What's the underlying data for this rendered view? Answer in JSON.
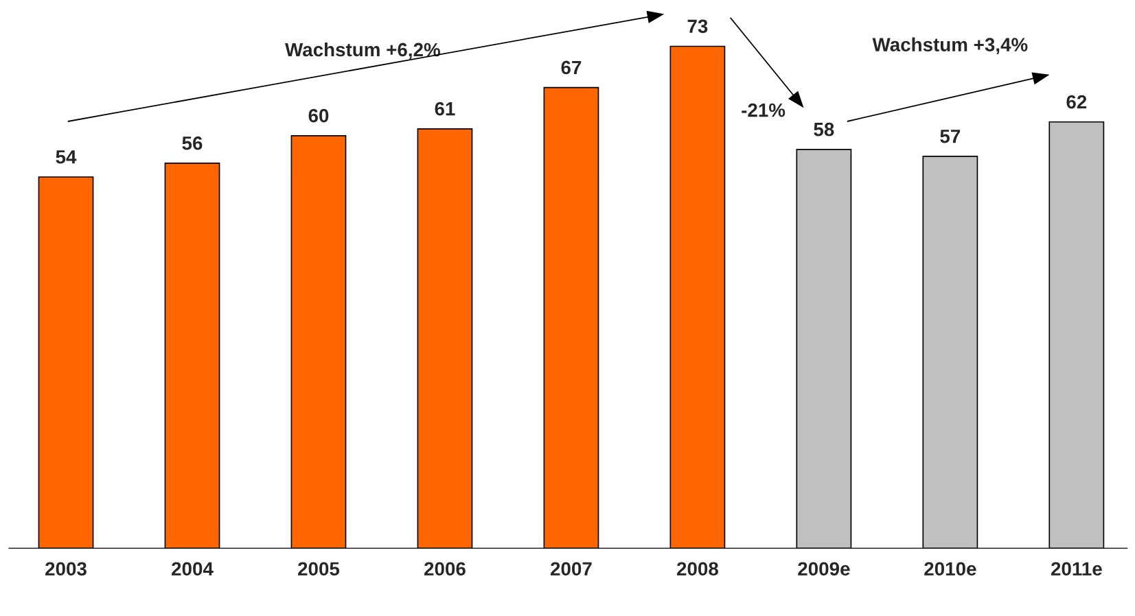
{
  "chart_data": {
    "type": "bar",
    "categories": [
      "2003",
      "2004",
      "2005",
      "2006",
      "2007",
      "2008",
      "2009e",
      "2010e",
      "2011e"
    ],
    "values": [
      54,
      56,
      60,
      61,
      67,
      73,
      58,
      57,
      62
    ],
    "colors": [
      "#ff6600",
      "#ff6600",
      "#ff6600",
      "#ff6600",
      "#ff6600",
      "#ff6600",
      "#c0c0c0",
      "#c0c0c0",
      "#c0c0c0"
    ],
    "data_labels": true,
    "grid": false,
    "legend": false,
    "tick_labels": "x",
    "annotations": [
      "Wachstum +6,2%",
      "-21%",
      "Wachstum +3,4%"
    ]
  }
}
